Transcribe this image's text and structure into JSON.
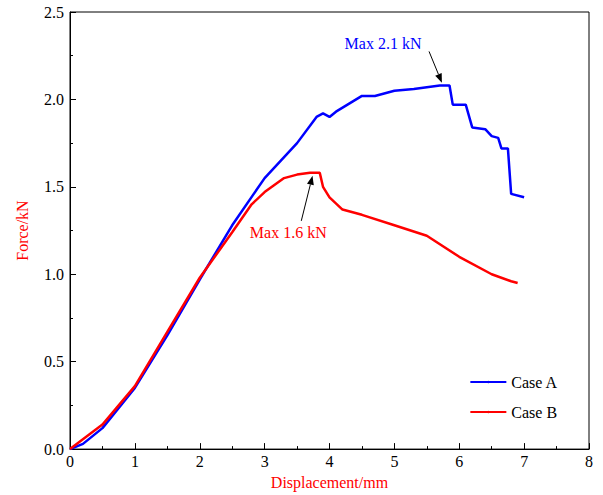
{
  "chart_data": {
    "type": "line",
    "x_label": "Displacement/mm",
    "y_label": "Force/kN",
    "xlim": [
      0,
      8
    ],
    "xticks": [
      0,
      1,
      2,
      3,
      4,
      5,
      6,
      7,
      8
    ],
    "ylim": [
      0,
      2.5
    ],
    "yticks": [
      {
        "value": 0,
        "label": "0.0"
      },
      0.5,
      {
        "value": 1,
        "label": "1.0"
      },
      1.5,
      {
        "value": 2,
        "label": "2.0"
      },
      2.5
    ],
    "grid": false,
    "legend": "lower right",
    "series": [
      {
        "name": "Case A",
        "color": "#0000ff",
        "x": [
          0,
          0.2,
          0.5,
          1,
          1.5,
          2,
          2.5,
          3,
          3.5,
          3.8,
          3.9,
          4,
          4.1,
          4.5,
          4.7,
          5,
          5.3,
          5.5,
          5.7,
          5.85,
          5.9,
          6.1,
          6.2,
          6.4,
          6.5,
          6.6,
          6.65,
          6.75,
          6.8,
          7
        ],
        "values": [
          0,
          0.03,
          0.12,
          0.35,
          0.65,
          0.97,
          1.28,
          1.55,
          1.75,
          1.9,
          1.92,
          1.9,
          1.93,
          2.02,
          2.02,
          2.05,
          2.06,
          2.07,
          2.08,
          2.08,
          1.97,
          1.97,
          1.84,
          1.83,
          1.79,
          1.78,
          1.72,
          1.72,
          1.46,
          1.44
        ]
      },
      {
        "name": "Case B",
        "color": "#ff0000",
        "x": [
          0,
          0.5,
          1,
          1.5,
          2,
          2.5,
          2.8,
          3,
          3.3,
          3.5,
          3.7,
          3.85,
          3.9,
          4,
          4.2,
          4.5,
          5,
          5.5,
          6,
          6.5,
          6.8,
          6.9
        ],
        "values": [
          0,
          0.14,
          0.36,
          0.67,
          0.98,
          1.24,
          1.4,
          1.47,
          1.55,
          1.57,
          1.58,
          1.58,
          1.5,
          1.44,
          1.37,
          1.34,
          1.28,
          1.22,
          1.1,
          1.0,
          0.96,
          0.95
        ]
      }
    ],
    "annotations": [
      {
        "text": "Max 2.1 kN",
        "series": "Case A",
        "x": 5.75,
        "y": 2.08
      },
      {
        "text": "Max 1.6 kN",
        "series": "Case B",
        "x": 3.75,
        "y": 1.58
      }
    ]
  }
}
